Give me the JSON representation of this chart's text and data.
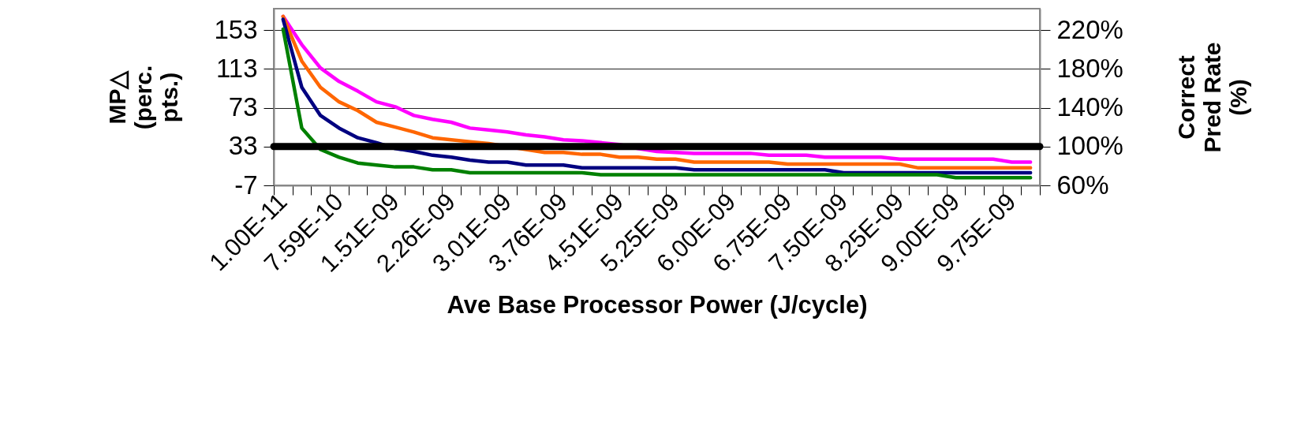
{
  "chart_data": {
    "type": "line",
    "xlabel": "Ave Base Processor Power (J/cycle)",
    "ylabel": "MP△\n(perc.\npts.)",
    "y2label": "Correct\nPred Rate\n(%)",
    "categories": [
      "1.00E-11",
      null,
      null,
      "7.59E-10",
      null,
      null,
      "1.51E-09",
      null,
      null,
      "2.26E-09",
      null,
      null,
      "3.01E-09",
      null,
      null,
      "3.76E-09",
      null,
      null,
      "4.51E-09",
      null,
      null,
      "5.25E-09",
      null,
      null,
      "6.00E-09",
      null,
      null,
      "6.75E-09",
      null,
      null,
      "7.50E-09",
      null,
      null,
      "8.25E-09",
      null,
      null,
      "9.00E-09",
      null,
      null,
      "9.75E-09",
      null
    ],
    "series": [
      {
        "color": "#ff00ff",
        "values": [
          167,
          138,
          114,
          100,
          90,
          79,
          74,
          65,
          61,
          58,
          52,
          50,
          48,
          45,
          43,
          40,
          39,
          37,
          35,
          31,
          28,
          27,
          26,
          26,
          26,
          26,
          24,
          24,
          24,
          22,
          22,
          22,
          22,
          20,
          20,
          20,
          20,
          20,
          20,
          17,
          17
        ]
      },
      {
        "color": "#ff6600",
        "values": [
          167,
          121,
          94,
          79,
          70,
          58,
          53,
          48,
          42,
          40,
          38,
          36,
          null,
          30,
          27,
          27,
          25,
          25,
          22,
          22,
          20,
          20,
          17,
          17,
          17,
          17,
          17,
          15,
          15,
          15,
          15,
          15,
          15,
          15,
          11,
          11,
          11,
          11,
          11,
          11,
          11
        ]
      },
      {
        "color": "#000080",
        "values": [
          164,
          94,
          65,
          52,
          42,
          37,
          31,
          28,
          24,
          22,
          19,
          17,
          17,
          14,
          14,
          14,
          11,
          11,
          11,
          11,
          11,
          11,
          9,
          9,
          9,
          9,
          9,
          9,
          9,
          9,
          6,
          6,
          6,
          6,
          6,
          6,
          6,
          6,
          6,
          6,
          6
        ]
      },
      {
        "color": "#008000",
        "values": [
          154,
          52,
          30,
          22,
          16,
          14,
          12,
          12,
          9,
          9,
          6,
          6,
          6,
          6,
          6,
          6,
          6,
          4,
          4,
          4,
          4,
          4,
          4,
          4,
          4,
          4,
          4,
          4,
          4,
          4,
          4,
          4,
          4,
          4,
          4,
          4,
          1,
          1,
          1,
          1,
          1
        ]
      }
    ],
    "ylim": [
      -7,
      175
    ],
    "yticks": [
      -7,
      33,
      73,
      113,
      153
    ],
    "y2lim": [
      60,
      242
    ],
    "y2ticks": [
      {
        "value": 60,
        "label": "60%"
      },
      {
        "value": 100,
        "label": "100%"
      },
      {
        "value": 140,
        "label": "140%"
      },
      {
        "value": 180,
        "label": "180%"
      },
      {
        "value": 220,
        "label": "220%"
      }
    ],
    "ref_lines": [
      {
        "axis": "y2",
        "value": 100,
        "color": "#000000"
      }
    ],
    "grid": "y",
    "line_style": "solid"
  }
}
